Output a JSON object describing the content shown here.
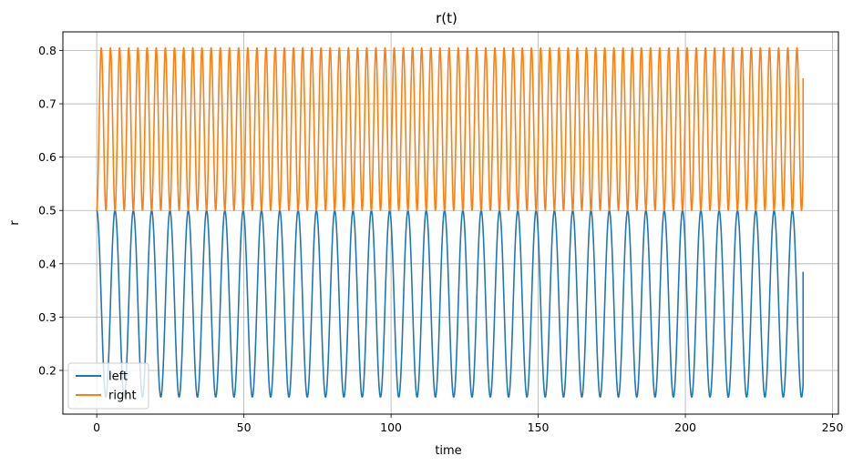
{
  "chart_data": {
    "type": "line",
    "title": "r(t)",
    "xlabel": "time",
    "ylabel": "r",
    "xlim": [
      -11.5,
      252
    ],
    "ylim": [
      0.118,
      0.835
    ],
    "xticks": [
      0,
      50,
      100,
      150,
      200,
      250
    ],
    "yticks": [
      0.2,
      0.3,
      0.4,
      0.5,
      0.6,
      0.7,
      0.8
    ],
    "xtick_labels": [
      "0",
      "50",
      "100",
      "150",
      "200",
      "250"
    ],
    "ytick_labels": [
      "0.2",
      "0.3",
      "0.4",
      "0.5",
      "0.6",
      "0.7",
      "0.8"
    ],
    "grid": true,
    "legend_position": "lower-left",
    "x_range": [
      0,
      240
    ],
    "series": [
      {
        "name": "left",
        "color": "#1f77b4",
        "form": "periodic oscillation",
        "start_value": 0.5,
        "min": 0.15,
        "max": 0.5,
        "period": 6.22,
        "end_value": 0.385
      },
      {
        "name": "right",
        "color": "#ff7f0e",
        "form": "periodic oscillation",
        "start_value": 0.5,
        "min": 0.5,
        "max": 0.805,
        "period": 3.11,
        "end_value": 0.748
      }
    ]
  }
}
